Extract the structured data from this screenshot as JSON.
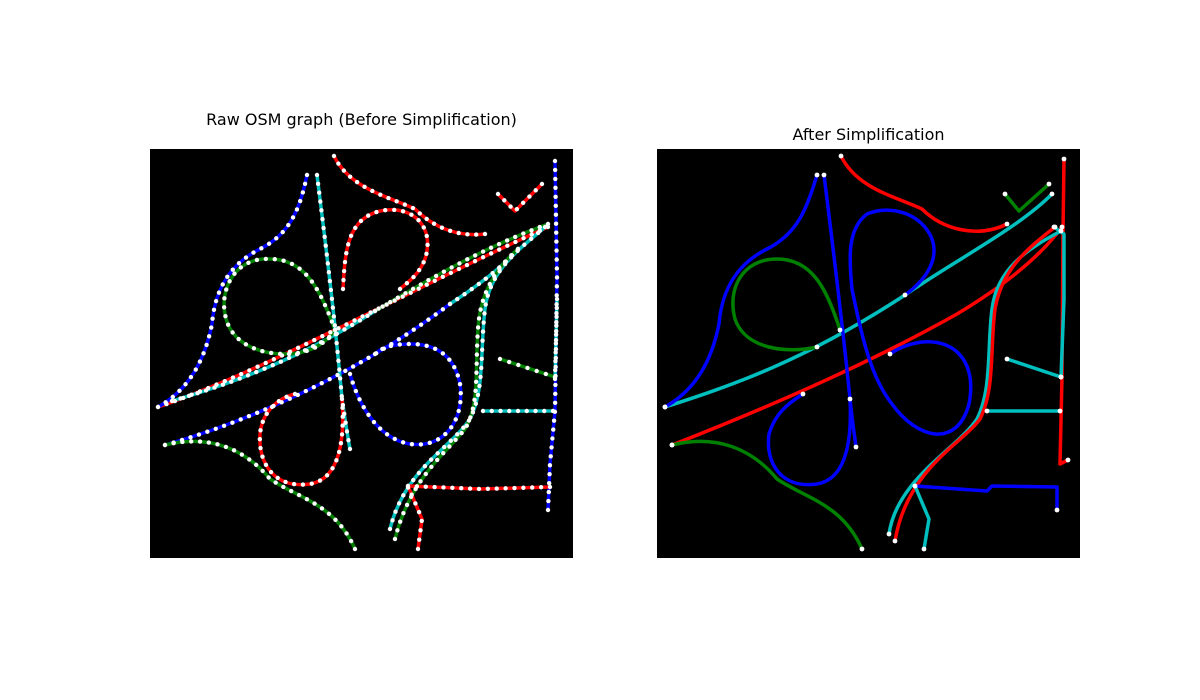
{
  "figure": {
    "left_title": "Raw OSM graph (Before Simplification)",
    "right_title": "After Simplification"
  },
  "palette": {
    "background": "#000000",
    "red": "#ff0000",
    "blue": "#0000ff",
    "green": "#008000",
    "cyan": "#00bfbf",
    "node": "#ffffff"
  }
}
